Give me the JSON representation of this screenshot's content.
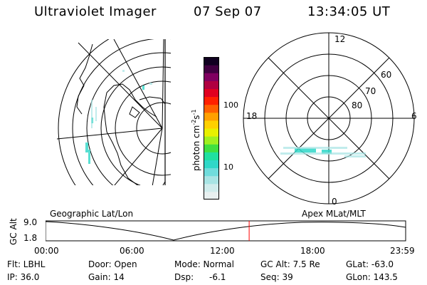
{
  "header": {
    "title": "Ultraviolet Imager",
    "date": "07 Sep 07",
    "time": "13:34:05 UT"
  },
  "left_panel": {
    "caption": "Geographic Lat/Lon"
  },
  "right_panel": {
    "caption": "Apex MLat/MLT",
    "mlt_labels": {
      "top": "12",
      "left": "18",
      "right": "6",
      "bottom": "0"
    },
    "lat_labels": [
      "80",
      "70",
      "60"
    ]
  },
  "colorbar": {
    "label_main": "photon cm",
    "label_exp1": "-2",
    "label_mid": "s",
    "label_exp2": "-1",
    "ticks": [
      "100",
      "10"
    ],
    "colors": [
      "#e8f0f0",
      "#d0ecec",
      "#a8e4e4",
      "#70dcdc",
      "#30d8c8",
      "#20e0a0",
      "#40e040",
      "#a0f020",
      "#e8f000",
      "#ffd000",
      "#ffa000",
      "#ff6000",
      "#ff2000",
      "#e00020",
      "#b00040",
      "#800060",
      "#400040",
      "#100020"
    ]
  },
  "altitude_plot": {
    "ylabel": "GC Alt",
    "ymax_label": "9.0",
    "ymin_label": "1.8",
    "x_ticks": [
      "00:00",
      "06:00",
      "12:00",
      "18:00",
      "23:59"
    ],
    "current_marker_hours": 13.57,
    "marker_color": "#ff0000"
  },
  "info": {
    "filter": "Flt: LBHL",
    "ip": "IP: 36.0",
    "door": "Door: Open",
    "gain": "Gain: 14",
    "mode": "Mode: Normal",
    "dsp_label": "Dsp:",
    "dsp_value": "-6.1",
    "gc_alt": "GC Alt: 7.5 Re",
    "seq": "Seq: 39",
    "glat": "GLat: -63.0",
    "glon": "GLon: 143.5"
  }
}
